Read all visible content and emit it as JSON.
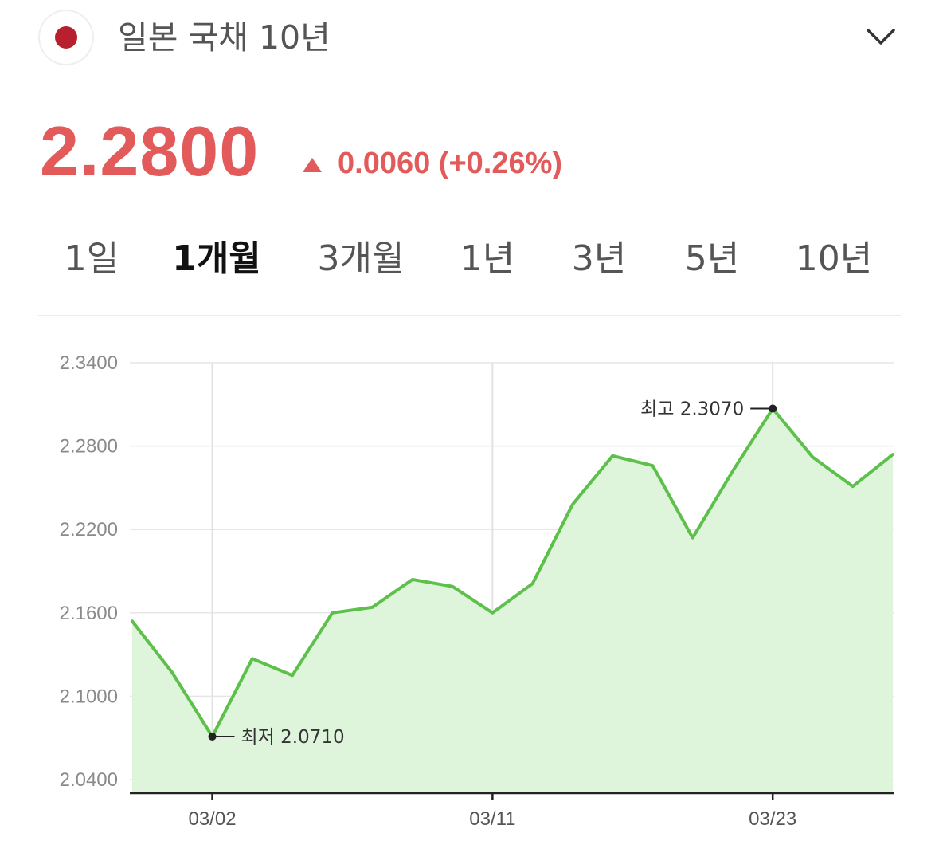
{
  "header": {
    "title": "일본 국채 10년",
    "flag_icon": "japan-flag-icon",
    "flag_color": "#b8202f",
    "dropdown_icon": "chevron-down-icon"
  },
  "quote": {
    "price": "2.2800",
    "change": "0.0060 (+0.26%)",
    "direction_icon": "up-triangle-icon",
    "up_color": "#e25a5a"
  },
  "tabs": [
    {
      "label": "1일",
      "active": false
    },
    {
      "label": "1개월",
      "active": true
    },
    {
      "label": "3개월",
      "active": false
    },
    {
      "label": "1년",
      "active": false
    },
    {
      "label": "3년",
      "active": false
    },
    {
      "label": "5년",
      "active": false
    },
    {
      "label": "10년",
      "active": false
    }
  ],
  "chart_data": {
    "type": "area",
    "line_color": "#5dc04a",
    "fill_color": "#def5dc",
    "grid": true,
    "ylim": [
      2.04,
      2.34
    ],
    "y_ticks": [
      "2.3400",
      "2.2800",
      "2.2200",
      "2.1600",
      "2.1000",
      "2.0400"
    ],
    "x_ticks": [
      {
        "label": "03/02",
        "index": 2
      },
      {
        "label": "03/11",
        "index": 9
      },
      {
        "label": "03/23",
        "index": 16
      }
    ],
    "values": [
      2.154,
      2.117,
      2.071,
      2.127,
      2.115,
      2.16,
      2.164,
      2.184,
      2.179,
      2.16,
      2.181,
      2.238,
      2.273,
      2.266,
      2.214,
      2.262,
      2.307,
      2.272,
      2.251,
      2.274
    ],
    "annotations": [
      {
        "label": "최저 2.0710",
        "index": 2,
        "side": "right"
      },
      {
        "label": "최고 2.3070",
        "index": 16,
        "side": "left"
      }
    ]
  }
}
